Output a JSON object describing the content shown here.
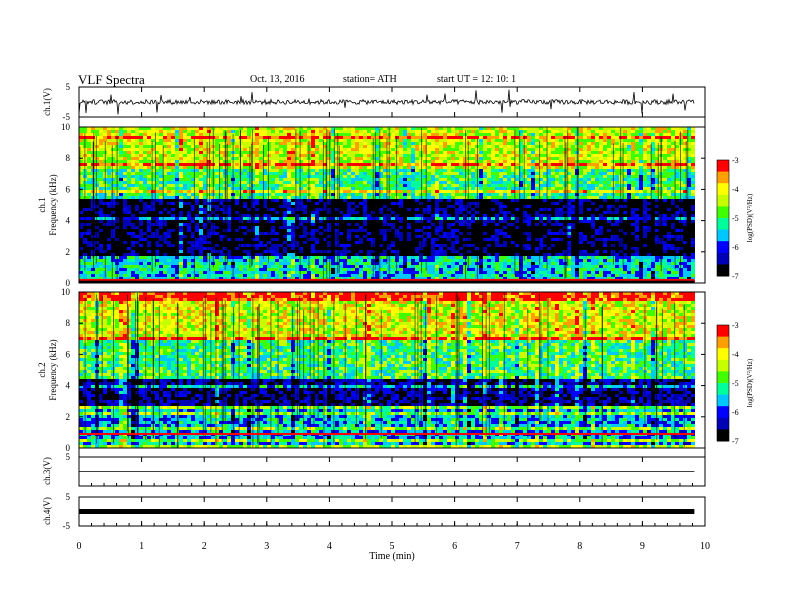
{
  "header": {
    "title": "VLF  Spectra",
    "date": "Oct. 13, 2016",
    "station": "station= ATH",
    "start": "start  UT =   12: 10: 1"
  },
  "chart_data": [
    {
      "type": "line",
      "panel": "ch1",
      "ylabel": "ch.1(V)",
      "ylim": [
        -5,
        5
      ],
      "yticks": [
        "5",
        "-5"
      ],
      "x": [
        0,
        1,
        2,
        3,
        4,
        5,
        6,
        7,
        8,
        9,
        9.8
      ],
      "values": [
        0,
        0,
        0,
        0,
        0,
        0,
        0,
        0,
        0,
        0,
        0
      ],
      "note_style": "noisy trace near 0 V"
    },
    {
      "type": "heatmap",
      "panel": "ch1-spectrogram",
      "ylabel_top": "ch.1",
      "ylabel": "Frequency  (kHz)",
      "ylim": [
        0,
        10
      ],
      "yticks": [
        "0",
        "2",
        "4",
        "6",
        "8",
        "10"
      ],
      "colorbar": {
        "label": "log(PSD)(V²/Hz)",
        "ticks": [
          "-3",
          "-4",
          "-5",
          "-6",
          "-7"
        ],
        "range": [
          -7,
          -3
        ]
      },
      "bands": [
        {
          "kHz": [
            0,
            0.3
          ],
          "level": -3.2
        },
        {
          "kHz": [
            0.3,
            1.8
          ],
          "level": -5.4
        },
        {
          "kHz": [
            1.8,
            5.5
          ],
          "level": -6.7
        },
        {
          "kHz": [
            5.5,
            7.5
          ],
          "level": -5.0
        },
        {
          "kHz": [
            7.5,
            10
          ],
          "level": -4.3
        }
      ]
    },
    {
      "type": "heatmap",
      "panel": "ch2-spectrogram",
      "ylabel_top": "ch.2",
      "ylabel": "Frequency  (kHz)",
      "ylim": [
        0,
        10
      ],
      "yticks": [
        "0",
        "2",
        "4",
        "6",
        "8",
        "10"
      ],
      "colorbar": {
        "label": "log(PSD)(V²/Hz)",
        "ticks": [
          "-3",
          "-4",
          "-5",
          "-6",
          "-7"
        ],
        "range": [
          -7,
          -3
        ]
      },
      "bands": [
        {
          "kHz": [
            0,
            0.3
          ],
          "level": -4.5
        },
        {
          "kHz": [
            0.3,
            2.8
          ],
          "level": -5.6
        },
        {
          "kHz": [
            2.8,
            4.5
          ],
          "level": -6.5
        },
        {
          "kHz": [
            4.5,
            7.0
          ],
          "level": -5.0
        },
        {
          "kHz": [
            7.0,
            10
          ],
          "level": -4.2
        }
      ]
    },
    {
      "type": "line",
      "panel": "ch3",
      "ylabel": "ch.3(V)",
      "ylim": [
        -5,
        5
      ],
      "yticks": [
        "5"
      ],
      "x": [
        0,
        9.8
      ],
      "values": [
        0,
        0
      ]
    },
    {
      "type": "line",
      "panel": "ch4",
      "ylabel": "ch.4(V)",
      "ylim": [
        -5,
        5
      ],
      "yticks": [
        "5",
        "-5"
      ],
      "x": [
        0,
        9.8
      ],
      "values": [
        0,
        0
      ]
    }
  ],
  "xaxis": {
    "label": "Time  (min)",
    "ticks": [
      "0",
      "1",
      "2",
      "3",
      "4",
      "5",
      "6",
      "7",
      "8",
      "9",
      "10"
    ],
    "xlim": [
      0,
      10
    ]
  },
  "colors": {
    "cmap": [
      "#000000",
      "#0000b4",
      "#0000ff",
      "#00c8ff",
      "#00ff9a",
      "#40ff00",
      "#c8ff00",
      "#ffff00",
      "#ffa000",
      "#ff0000",
      "#ffffff"
    ]
  }
}
